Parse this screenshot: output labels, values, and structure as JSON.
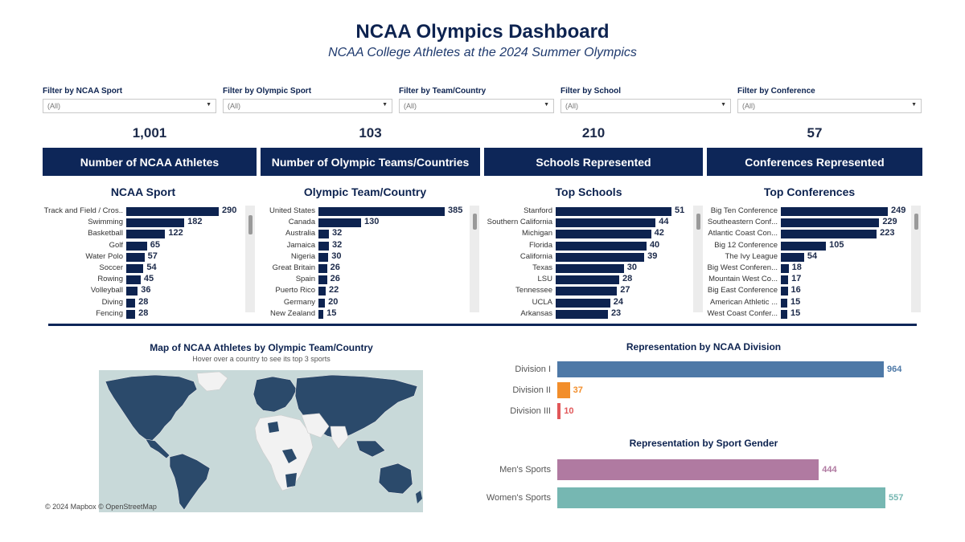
{
  "header": {
    "title": "NCAA Olympics Dashboard",
    "subtitle": "NCAA College Athletes at the 2024  Summer Olympics"
  },
  "filters": [
    {
      "label": "Filter by NCAA Sport",
      "value": "(All)"
    },
    {
      "label": "Filter by Olympic Sport",
      "value": "(All)"
    },
    {
      "label": "Filter by Team/Country",
      "value": "(All)"
    },
    {
      "label": "Filter by School",
      "value": "(All)"
    },
    {
      "label": "Filter by Conference",
      "value": "(All)"
    }
  ],
  "kpis": [
    {
      "value": "1,001",
      "label": "Number of NCAA Athletes"
    },
    {
      "value": "103",
      "label": "Number of Olympic Teams/Countries"
    },
    {
      "value": "210",
      "label": "Schools Represented"
    },
    {
      "value": "57",
      "label": "Conferences Represented"
    }
  ],
  "colors": {
    "navy": "#0d2350",
    "div1": "#4e79a7",
    "div2": "#f28e2b",
    "div3": "#e15759",
    "mens": "#b07aa1",
    "womens": "#76b7b2"
  },
  "map": {
    "title": "Map of NCAA Athletes by Olympic Team/Country",
    "subtitle": "Hover over a country to see its top 3 sports",
    "credit": "© 2024 Mapbox © OpenStreetMap"
  },
  "chart_data": [
    {
      "type": "bar",
      "title": "NCAA Sport",
      "categories": [
        "Track and Field / Cros..",
        "Swimming",
        "Basketball",
        "Golf",
        "Water Polo",
        "Soccer",
        "Rowing",
        "Volleyball",
        "Diving",
        "Fencing"
      ],
      "values": [
        290,
        182,
        122,
        65,
        57,
        54,
        45,
        36,
        28,
        28
      ]
    },
    {
      "type": "bar",
      "title": "Olympic Team/Country",
      "categories": [
        "United States",
        "Canada",
        "Australia",
        "Jamaica",
        "Nigeria",
        "Great Britain",
        "Spain",
        "Puerto Rico",
        "Germany",
        "New Zealand"
      ],
      "values": [
        385,
        130,
        32,
        32,
        30,
        26,
        26,
        22,
        20,
        15
      ]
    },
    {
      "type": "bar",
      "title": "Top Schools",
      "categories": [
        "Stanford",
        "Southern California",
        "Michigan",
        "Florida",
        "California",
        "Texas",
        "LSU",
        "Tennessee",
        "UCLA",
        "Arkansas"
      ],
      "values": [
        51,
        44,
        42,
        40,
        39,
        30,
        28,
        27,
        24,
        23
      ]
    },
    {
      "type": "bar",
      "title": "Top Conferences",
      "categories": [
        "Big Ten Conference",
        "Southeastern Conf...",
        "Atlantic Coast Con...",
        "Big 12 Conference",
        "The Ivy League",
        "Big West Conferen...",
        "Mountain West Co...",
        "Big East Conference",
        "American Athletic ...",
        "West Coast Confer..."
      ],
      "values": [
        249,
        229,
        223,
        105,
        54,
        18,
        17,
        16,
        15,
        15
      ]
    },
    {
      "type": "bar",
      "title": "Representation by NCAA Division",
      "categories": [
        "Division I",
        "Division II",
        "Division III"
      ],
      "values": [
        964,
        37,
        10
      ]
    },
    {
      "type": "bar",
      "title": "Representation by Sport Gender",
      "categories": [
        "Men's Sports",
        "Women's Sports"
      ],
      "values": [
        444,
        557
      ]
    }
  ]
}
